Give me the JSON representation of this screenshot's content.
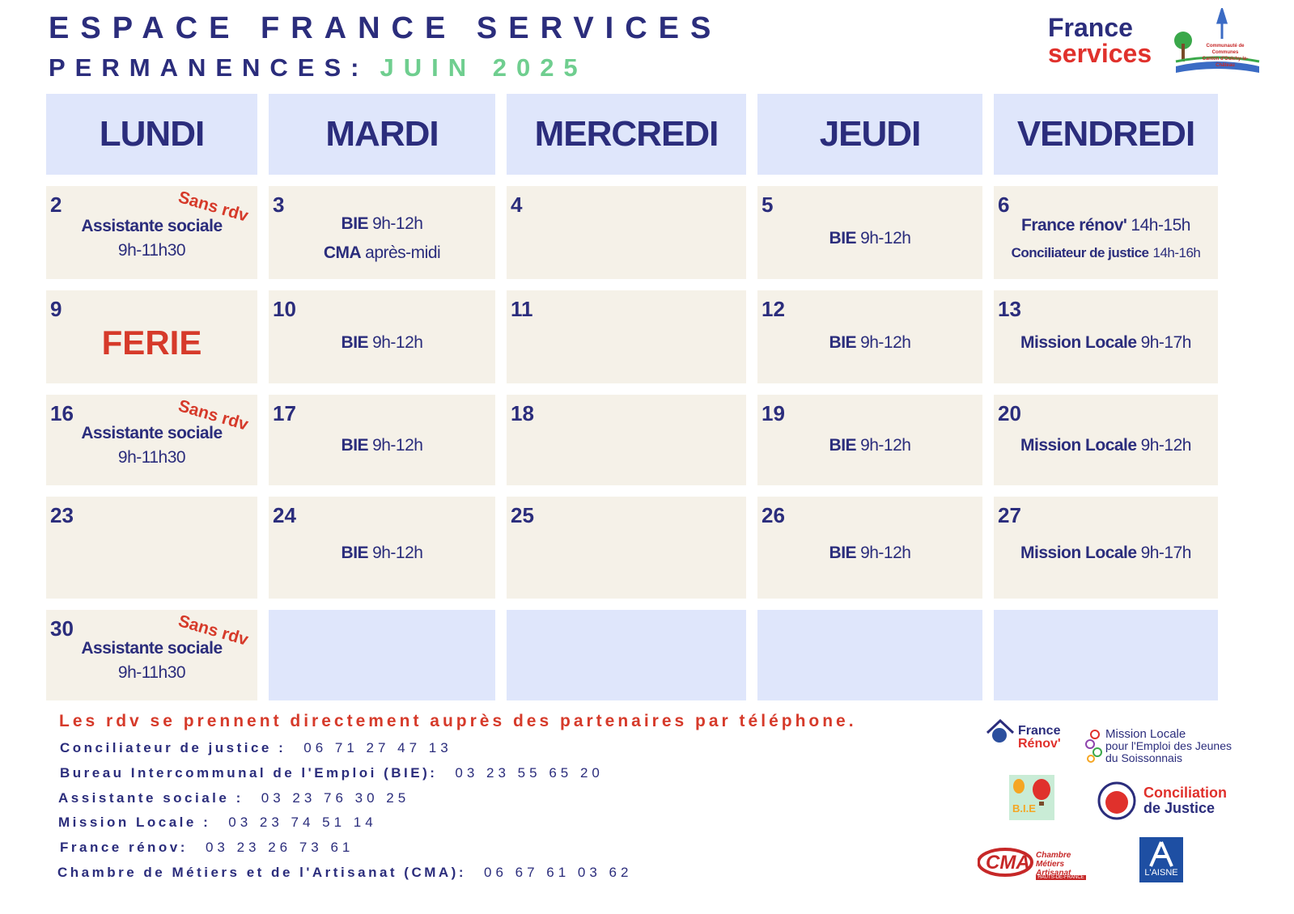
{
  "header": {
    "title": "ESPACE FRANCE SERVICES",
    "subtitle": "PERMANENCES:",
    "month": "JUIN 2025",
    "logo_line1": "France",
    "logo_line2": "services",
    "community": "Communauté de Communes",
    "canton": "Canton d'Oulchy-le-Château"
  },
  "days": [
    "LUNDI",
    "MARDI",
    "MERCREDI",
    "JEUDI",
    "VENDREDI"
  ],
  "weeks": [
    [
      {
        "day": "2",
        "tag": "Sans rdv",
        "items": [
          {
            "bold": "Assistante sociale"
          },
          {
            "text": "9h-11h30"
          }
        ]
      },
      {
        "day": "3",
        "items": [
          {
            "bold": "BIE",
            "text": "9h-12h"
          },
          {
            "bold": "CMA",
            "text": "après-midi"
          }
        ]
      },
      {
        "day": "4"
      },
      {
        "day": "5",
        "items": [
          {
            "bold": "BIE",
            "text": "9h-12h"
          }
        ]
      },
      {
        "day": "6",
        "items": [
          {
            "bold": "France rénov'",
            "text": "14h-15h"
          },
          {
            "bold": "Conciliateur de justice",
            "text": "14h-16h",
            "small": true
          }
        ]
      }
    ],
    [
      {
        "day": "9",
        "holiday": "FERIE"
      },
      {
        "day": "10",
        "items": [
          {
            "bold": "BIE",
            "text": "9h-12h"
          }
        ]
      },
      {
        "day": "11"
      },
      {
        "day": "12",
        "items": [
          {
            "bold": "BIE",
            "text": "9h-12h"
          }
        ]
      },
      {
        "day": "13",
        "items": [
          {
            "bold": "Mission Locale",
            "text": "9h-17h"
          }
        ]
      }
    ],
    [
      {
        "day": "16",
        "tag": "Sans rdv",
        "items": [
          {
            "bold": "Assistante sociale"
          },
          {
            "text": "9h-11h30"
          }
        ]
      },
      {
        "day": "17",
        "items": [
          {
            "bold": "BIE",
            "text": "9h-12h"
          }
        ]
      },
      {
        "day": "18"
      },
      {
        "day": "19",
        "items": [
          {
            "bold": "BIE",
            "text": "9h-12h"
          }
        ]
      },
      {
        "day": "20",
        "items": [
          {
            "bold": "Mission Locale",
            "text": "9h-12h"
          }
        ]
      }
    ],
    [
      {
        "day": "23"
      },
      {
        "day": "24",
        "items": [
          {
            "bold": "BIE",
            "text": "9h-12h"
          }
        ]
      },
      {
        "day": "25"
      },
      {
        "day": "26",
        "items": [
          {
            "bold": "BIE",
            "text": "9h-12h"
          }
        ]
      },
      {
        "day": "27",
        "items": [
          {
            "bold": "Mission Locale",
            "text": "9h-17h"
          }
        ]
      }
    ],
    [
      {
        "day": "30",
        "tag": "Sans rdv",
        "items": [
          {
            "bold": "Assistante sociale"
          },
          {
            "text": "9h-11h30"
          }
        ]
      },
      {},
      {},
      {},
      {}
    ]
  ],
  "footer": {
    "notice": "Les rdv se prennent directement auprès des partenaires par téléphone.",
    "contacts": [
      {
        "label": "Conciliateur de justice :",
        "phone": "06 71 27 47 13"
      },
      {
        "label": "Bureau Intercommunal de l'Emploi (BIE):",
        "phone": "03 23 55 65 20"
      },
      {
        "label": "Assistante sociale :",
        "phone": "03 23 76 30 25"
      },
      {
        "label": "Mission Locale :",
        "phone": "03 23 74 51 14"
      },
      {
        "label": "France rénov:",
        "phone": "03 23 26 73 61"
      },
      {
        "label": "Chambre de Métiers et de l'Artisanat (CMA):",
        "phone": "06 67 61 03 62"
      }
    ]
  },
  "partners": {
    "renov1": "France",
    "renov2": "Rénov'",
    "ml1": "Mission Locale",
    "ml2": "pour l'Emploi des Jeunes",
    "ml3": "du Soissonnais",
    "bie": "B.I.E",
    "conc1": "Conciliation",
    "conc2": "de Justice",
    "cma": "CMA",
    "cma2": "Chambre Métiers Artisanat",
    "cma3": "HAUTS-DE-FRANCE",
    "aisne": "L'AISNE"
  }
}
